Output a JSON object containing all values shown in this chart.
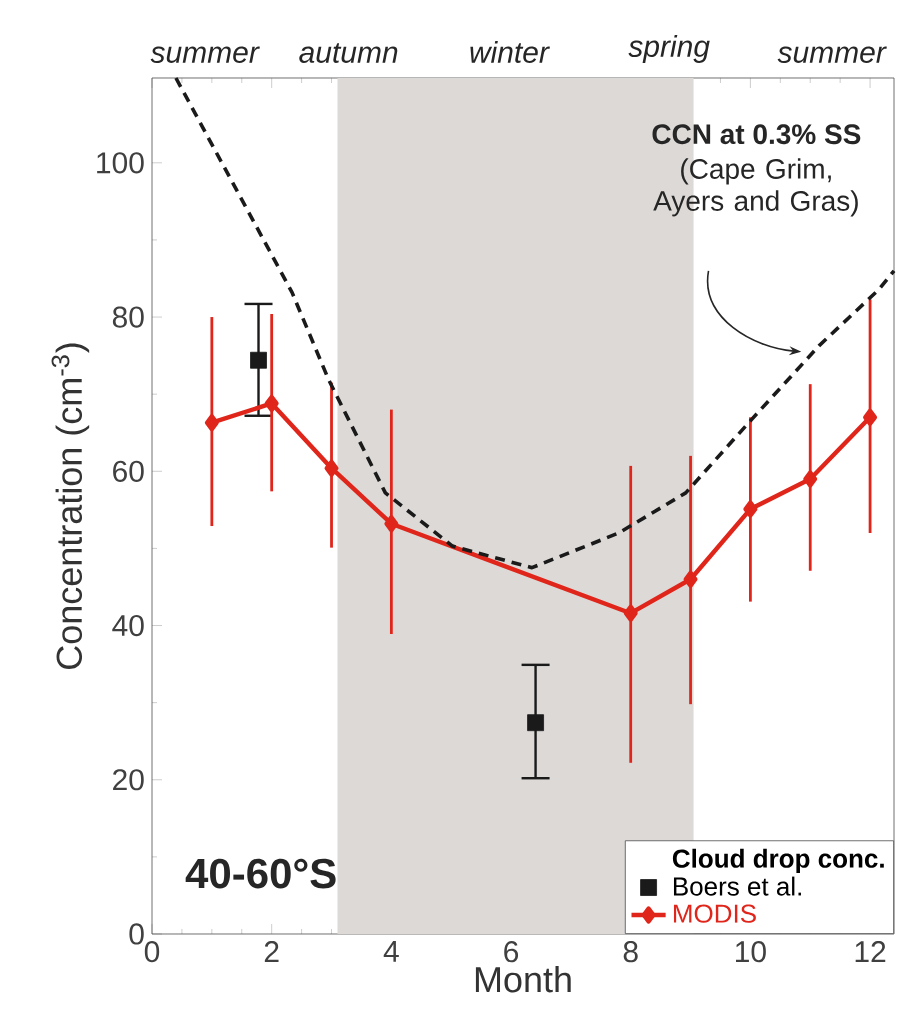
{
  "chart_data": {
    "type": "line",
    "xlabel": "Month",
    "ylabel": "Concentration (cm$^{-3}$)",
    "xlim": [
      0,
      12.4
    ],
    "ylim": [
      0,
      111
    ],
    "xticks": [
      0,
      2,
      4,
      6,
      8,
      10,
      12
    ],
    "yticks": [
      0,
      20,
      40,
      60,
      80,
      100
    ],
    "legend_title": "Cloud drop conc.",
    "legend": "bottom right",
    "grid": false,
    "bands": [
      {
        "axis": "x",
        "from": 3.1,
        "to": 9.05,
        "color": "#dcd9d7"
      }
    ],
    "series": [
      {
        "name": "Boers et al.",
        "type": "scatter",
        "color": "#1a1a1a",
        "marker": "square",
        "x": [
          1.78,
          6.41
        ],
        "values": [
          74.4,
          27.4
        ],
        "errors": [
          [
            67.2,
            81.7
          ],
          [
            20.2,
            34.9
          ]
        ]
      },
      {
        "name": "MODIS",
        "type": "line",
        "color": "#e0251b",
        "marker": "diamond",
        "line_style": "solid",
        "x": [
          1,
          2,
          3,
          4,
          8,
          9,
          10,
          11,
          12
        ],
        "values": [
          66.3,
          68.8,
          60.4,
          53.2,
          41.6,
          46,
          55.1,
          59,
          67
        ],
        "errors": [
          [
            52.9,
            80
          ],
          [
            57.4,
            80.4
          ],
          [
            50.1,
            71.5
          ],
          [
            38.9,
            68
          ],
          [
            22.2,
            60.7
          ],
          [
            29.8,
            62
          ],
          [
            43.1,
            67
          ],
          [
            47.1,
            71.3
          ],
          [
            52,
            82.3
          ]
        ]
      },
      {
        "color": "#1a1a1a",
        "marker": "none",
        "line_style": "dashed",
        "x": [
          0.4,
          2.34,
          2.95,
          3.9,
          5.02,
          6.35,
          7.8,
          8.92,
          10.03,
          11.15,
          12.15,
          12.4
        ],
        "values": [
          111,
          83.2,
          71.9,
          57.2,
          50.3,
          47.5,
          52,
          57.2,
          66.8,
          76.3,
          83.6,
          86
        ]
      }
    ],
    "annotations": [
      "summer",
      "autumn",
      "winter",
      "spring",
      "summer",
      "**CCN at 0.3% SS**",
      "(Cape Grim, Ayers and Gras)",
      "40-60°S"
    ]
  }
}
